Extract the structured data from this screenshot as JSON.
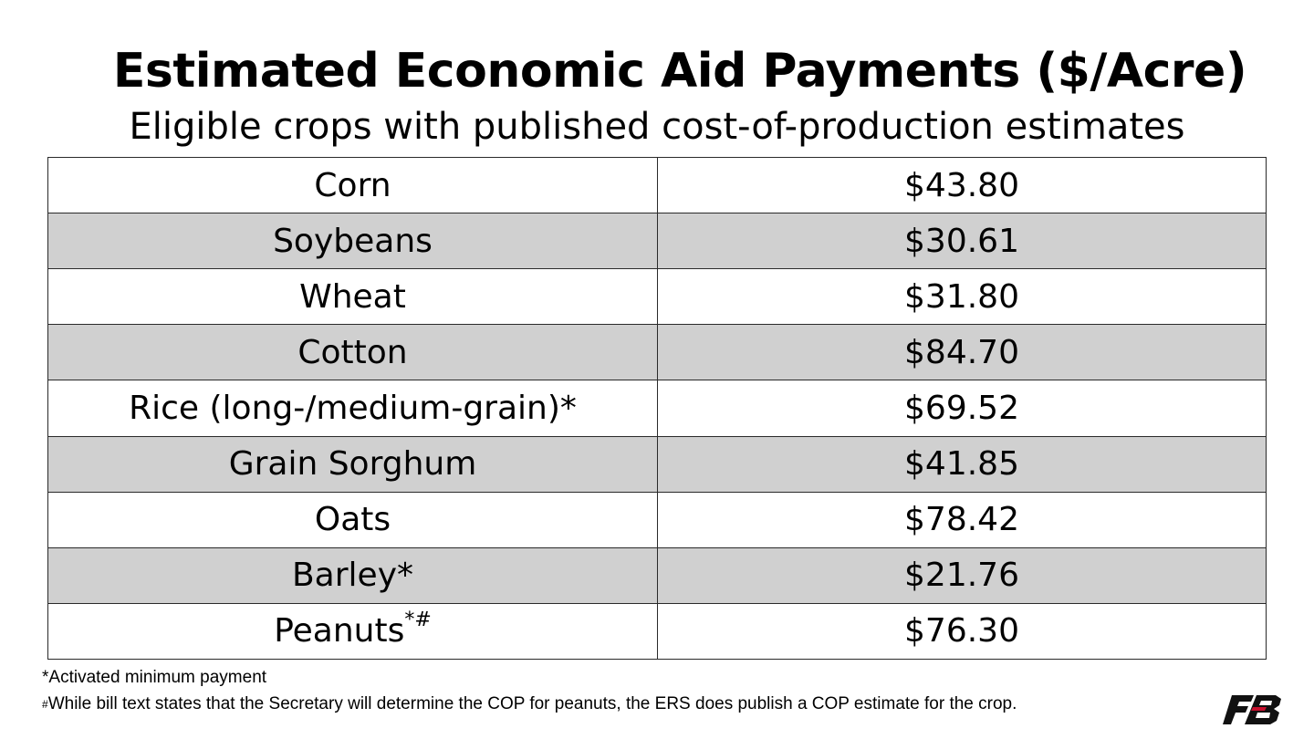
{
  "title": "Estimated Economic Aid Payments ($/Acre)",
  "subtitle": "Eligible crops with published cost-of-production estimates",
  "rows": [
    {
      "crop": "Corn",
      "mark": "",
      "payment": "$43.80"
    },
    {
      "crop": "Soybeans",
      "mark": "",
      "payment": "$30.61"
    },
    {
      "crop": "Wheat",
      "mark": "",
      "payment": "$31.80"
    },
    {
      "crop": "Cotton",
      "mark": "",
      "payment": "$84.70"
    },
    {
      "crop": "Rice (long-/medium-grain)*",
      "mark": "",
      "payment": "$69.52"
    },
    {
      "crop": "Grain Sorghum",
      "mark": "",
      "payment": "$41.85"
    },
    {
      "crop": "Oats",
      "mark": "",
      "payment": "$78.42"
    },
    {
      "crop": "Barley*",
      "mark": "",
      "payment": "$21.76"
    },
    {
      "crop": "Peanuts",
      "mark": "*#",
      "payment": "$76.30"
    }
  ],
  "footnotes": {
    "note1": "*Activated minimum payment",
    "note2_mark": "#",
    "note2": "While bill text states that the Secretary will determine the COP for peanuts, the ERS does publish a COP estimate for the crop."
  },
  "logo": {
    "icon": "farm-bureau-logo",
    "color": "#111111",
    "accent": "#c8102e"
  },
  "colors": {
    "shaded_row": "#d0d0d0",
    "border": "#2a2a2a"
  }
}
